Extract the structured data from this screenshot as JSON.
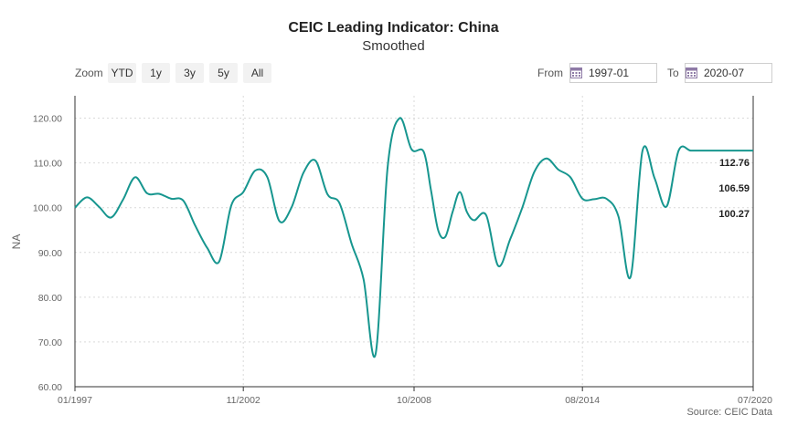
{
  "title": "CEIC Leading Indicator: China",
  "subtitle": "Smoothed",
  "toolbar": {
    "zoom_label": "Zoom",
    "zoom_buttons": [
      "YTD",
      "1y",
      "3y",
      "5y",
      "All"
    ],
    "from_label": "From",
    "from_value": "1997-01",
    "to_label": "To",
    "to_value": "2020-07"
  },
  "source": "Source: CEIC Data",
  "colors": {
    "line": "#17968f",
    "grid": "#d9d9d9",
    "axis": "#333333"
  },
  "chart_data": {
    "type": "line",
    "title": "CEIC Leading Indicator: China",
    "subtitle": "Smoothed",
    "xlabel": "",
    "ylabel": "NA",
    "ylim": [
      60,
      125
    ],
    "xlim": [
      "1997-01",
      "2020-07"
    ],
    "yticks": [
      60,
      70,
      80,
      90,
      100,
      110,
      120
    ],
    "ytick_labels": [
      "60.00",
      "70.00",
      "80.00",
      "90.00",
      "100.00",
      "110.00",
      "120.00"
    ],
    "xticks": [
      "1997-01",
      "2002-11",
      "2008-10",
      "2014-08",
      "2020-07"
    ],
    "xtick_labels": [
      "01/1997",
      "11/2002",
      "10/2008",
      "08/2014",
      "07/2020"
    ],
    "grid": true,
    "end_labels": [
      "112.76",
      "106.59",
      "100.27"
    ],
    "series": [
      {
        "x": [
          "1997-01",
          "1997-06",
          "1997-11",
          "1998-04",
          "1998-09",
          "1999-02",
          "1999-07",
          "1999-12",
          "2000-05",
          "2000-10",
          "2001-03",
          "2001-08",
          "2002-01",
          "2002-06",
          "2002-11",
          "2003-04",
          "2003-09",
          "2004-02",
          "2004-07",
          "2004-12",
          "2005-05",
          "2005-10",
          "2006-03",
          "2006-08",
          "2007-01",
          "2007-06",
          "2007-11",
          "2008-04",
          "2008-09",
          "2009-02",
          "2009-05",
          "2009-08",
          "2009-11",
          "2010-02",
          "2010-05",
          "2010-08",
          "2010-11",
          "2011-04",
          "2011-09",
          "2012-02",
          "2012-07",
          "2012-12",
          "2013-05",
          "2013-10",
          "2014-03",
          "2014-08",
          "2015-01",
          "2015-06",
          "2015-11",
          "2016-04",
          "2016-09",
          "2017-02",
          "2017-07",
          "2017-12",
          "2018-05",
          "2018-10",
          "2019-03",
          "2019-08",
          "2019-12",
          "2020-03",
          "2020-07"
        ],
        "y": [
          100.0,
          102.3,
          100.2,
          97.8,
          101.8,
          106.8,
          103.2,
          103.1,
          102.0,
          101.6,
          96.0,
          91.0,
          88.0,
          100.5,
          103.5,
          108.3,
          106.8,
          97.0,
          100.0,
          107.8,
          110.5,
          103.0,
          101.0,
          92.0,
          84.0,
          67.3,
          109.0,
          120.0,
          113.0,
          112.5,
          104.0,
          95.0,
          93.5,
          99.0,
          103.5,
          99.0,
          97.2,
          98.3,
          87.0,
          93.0,
          100.0,
          108.0,
          111.0,
          108.5,
          106.8,
          102.0,
          101.9,
          102.0,
          98.0,
          84.5,
          112.76,
          106.59,
          100.27,
          112.76,
          112.76,
          112.76,
          112.76,
          112.76,
          112.76,
          112.76,
          112.76
        ]
      }
    ]
  }
}
